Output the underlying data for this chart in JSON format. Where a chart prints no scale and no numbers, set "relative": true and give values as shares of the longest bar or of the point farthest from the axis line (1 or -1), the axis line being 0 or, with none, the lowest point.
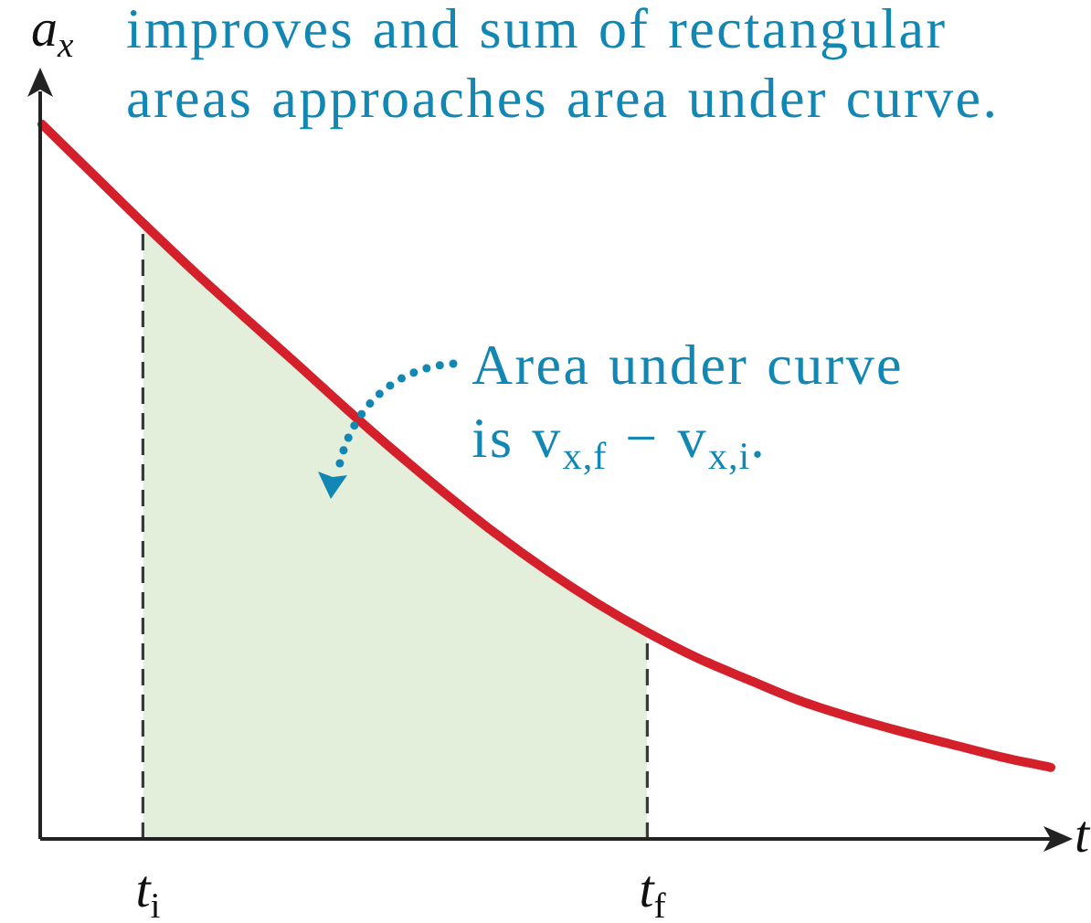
{
  "chart_data": {
    "type": "line",
    "title": "improves and sum of rectangular areas approaches area under curve.",
    "xlabel": "t",
    "ylabel": "a$_{x}$",
    "annotations": [
      "Area under curve is v$_{x,f}$ − v$_{x,i}$."
    ],
    "categories": [
      null,
      null,
      "t$_{i}$",
      null,
      null,
      null,
      null,
      null,
      null,
      null,
      null,
      null,
      "t$_{f}$",
      null,
      null,
      null,
      null,
      null,
      null,
      null,
      null
    ],
    "relative": true,
    "marker": "none",
    "series": [
      {
        "color": "#d4202a",
        "values": [
          1,
          0.931,
          0.862,
          0.795,
          0.731,
          0.668,
          0.604,
          0.542,
          0.483,
          0.427,
          0.376,
          0.33,
          0.289,
          0.253,
          0.223,
          0.194,
          0.171,
          0.151,
          0.133,
          0.115,
          0.1
        ]
      },
      {
        "type": "area",
        "color": "#e3eedb",
        "values": [
          null,
          null,
          0.862,
          0.795,
          0.731,
          0.668,
          0.604,
          0.542,
          0.483,
          0.427,
          0.376,
          0.33,
          0.289,
          null,
          null,
          null,
          null,
          null,
          null,
          null,
          null
        ]
      }
    ],
    "ref_lines": [
      {
        "axis": "x",
        "value": "t$_{i}$",
        "color": "#3a3a3a",
        "line_style": "dashed"
      },
      {
        "axis": "x",
        "value": "t$_{f}$",
        "color": "#3a3a3a",
        "line_style": "dashed"
      }
    ]
  }
}
